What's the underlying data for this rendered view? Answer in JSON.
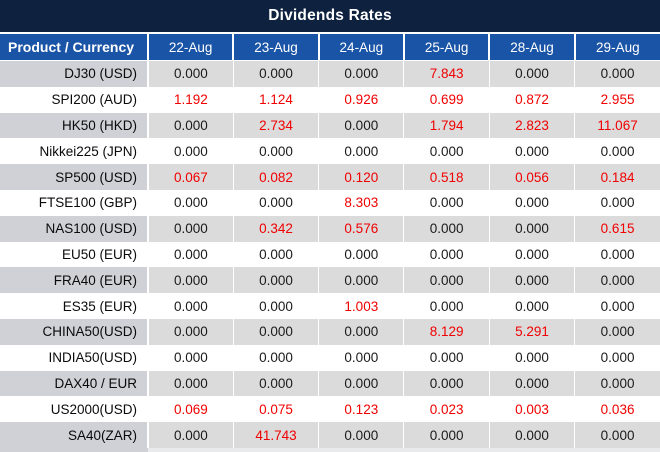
{
  "title": "Dividends Rates",
  "colors": {
    "title_bar_bg": "#0e2240",
    "header_bg": "#1a54a6",
    "header_text": "#ffffff",
    "row_gray_bg": "#dbdbdb",
    "row_gray_product_bg": "#cfd1d7",
    "row_white_bg": "#ffffff",
    "value_zero": "#1a1a1a",
    "value_nonzero": "#f00000"
  },
  "table": {
    "product_header": "Product / Currency",
    "date_columns": [
      "22-Aug",
      "23-Aug",
      "24-Aug",
      "25-Aug",
      "28-Aug",
      "29-Aug"
    ],
    "rows": [
      {
        "product": "DJ30 (USD)",
        "values": [
          "0.000",
          "0.000",
          "0.000",
          "7.843",
          "0.000",
          "0.000"
        ]
      },
      {
        "product": "SPI200 (AUD)",
        "values": [
          "1.192",
          "1.124",
          "0.926",
          "0.699",
          "0.872",
          "2.955"
        ]
      },
      {
        "product": "HK50 (HKD)",
        "values": [
          "0.000",
          "2.734",
          "0.000",
          "1.794",
          "2.823",
          "11.067"
        ]
      },
      {
        "product": "Nikkei225 (JPN)",
        "values": [
          "0.000",
          "0.000",
          "0.000",
          "0.000",
          "0.000",
          "0.000"
        ]
      },
      {
        "product": "SP500 (USD)",
        "values": [
          "0.067",
          "0.082",
          "0.120",
          "0.518",
          "0.056",
          "0.184"
        ]
      },
      {
        "product": "FTSE100 (GBP)",
        "values": [
          "0.000",
          "0.000",
          "8.303",
          "0.000",
          "0.000",
          "0.000"
        ]
      },
      {
        "product": "NAS100 (USD)",
        "values": [
          "0.000",
          "0.342",
          "0.576",
          "0.000",
          "0.000",
          "0.615"
        ]
      },
      {
        "product": "EU50 (EUR)",
        "values": [
          "0.000",
          "0.000",
          "0.000",
          "0.000",
          "0.000",
          "0.000"
        ]
      },
      {
        "product": "FRA40 (EUR)",
        "values": [
          "0.000",
          "0.000",
          "0.000",
          "0.000",
          "0.000",
          "0.000"
        ]
      },
      {
        "product": "ES35 (EUR)",
        "values": [
          "0.000",
          "0.000",
          "1.003",
          "0.000",
          "0.000",
          "0.000"
        ]
      },
      {
        "product": "CHINA50(USD)",
        "values": [
          "0.000",
          "0.000",
          "0.000",
          "8.129",
          "5.291",
          "0.000"
        ]
      },
      {
        "product": "INDIA50(USD)",
        "values": [
          "0.000",
          "0.000",
          "0.000",
          "0.000",
          "0.000",
          "0.000"
        ]
      },
      {
        "product": "DAX40 / EUR",
        "values": [
          "0.000",
          "0.000",
          "0.000",
          "0.000",
          "0.000",
          "0.000"
        ]
      },
      {
        "product": "US2000(USD)",
        "values": [
          "0.069",
          "0.075",
          "0.123",
          "0.023",
          "0.003",
          "0.036"
        ]
      },
      {
        "product": "SA40(ZAR)",
        "values": [
          "0.000",
          "41.743",
          "0.000",
          "0.000",
          "0.000",
          "0.000"
        ]
      }
    ]
  }
}
